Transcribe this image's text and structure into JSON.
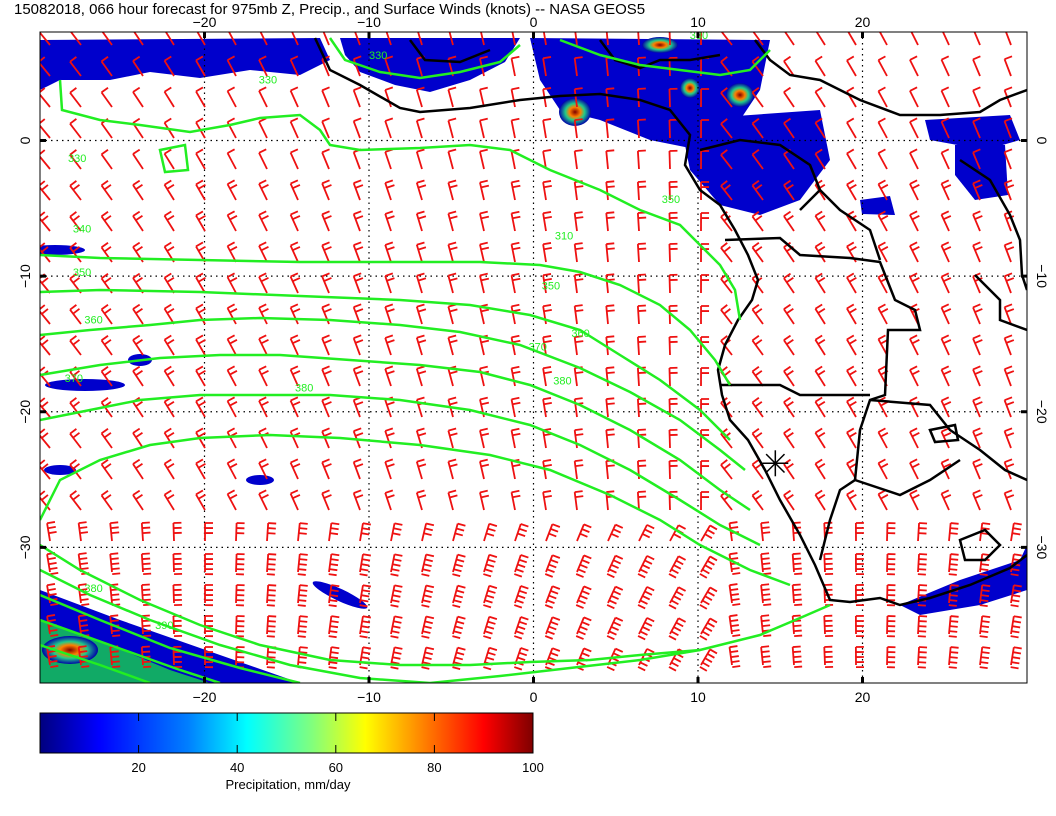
{
  "title": "15082018, 066 hour forecast for 975mb Z, Precip., and Surface Winds (knots) -- NASA GEOS5",
  "map": {
    "lon_range": [
      -30,
      30
    ],
    "lat_range": [
      -40,
      8
    ],
    "lon_ticks": [
      -20,
      -10,
      0,
      10,
      20
    ],
    "lon_tick_labels": [
      "−20",
      "−10",
      "0",
      "10",
      "20"
    ],
    "lat_ticks": [
      0,
      -10,
      -20,
      -30
    ],
    "lat_tick_labels": [
      "0",
      "−10",
      "−20",
      "−30"
    ],
    "grid": "dotted",
    "contour_color": "#22ee22",
    "barb_color": "#ee1111",
    "coast_color": "#000000",
    "contour_labels": [
      {
        "text": "330",
        "lon": -16.7,
        "lat": 4.2
      },
      {
        "text": "330",
        "lon": -28.3,
        "lat": -1.6
      },
      {
        "text": "340",
        "lon": -28.0,
        "lat": -6.8
      },
      {
        "text": "350",
        "lon": -28.0,
        "lat": -10.0
      },
      {
        "text": "360",
        "lon": -27.3,
        "lat": -13.5
      },
      {
        "text": "370",
        "lon": -28.5,
        "lat": -17.8
      },
      {
        "text": "380",
        "lon": -14.5,
        "lat": -18.5
      },
      {
        "text": "310",
        "lon": 1.3,
        "lat": -7.3
      },
      {
        "text": "350",
        "lon": 0.5,
        "lat": -11.0
      },
      {
        "text": "360",
        "lon": 2.3,
        "lat": -14.5
      },
      {
        "text": "370",
        "lon": -0.3,
        "lat": -15.5
      },
      {
        "text": "380",
        "lon": 1.2,
        "lat": -18.0
      },
      {
        "text": "350",
        "lon": 7.8,
        "lat": -4.6
      },
      {
        "text": "380",
        "lon": -27.3,
        "lat": -33.3
      },
      {
        "text": "390",
        "lon": -23.0,
        "lat": -36.0
      },
      {
        "text": "330",
        "lon": -10.0,
        "lat": 6.0
      },
      {
        "text": "330",
        "lon": 9.5,
        "lat": 7.5
      }
    ],
    "marker": {
      "lon": 14.7,
      "lat": -23.8
    }
  },
  "colorbar": {
    "label": "Precipitation, mm/day",
    "range": [
      0,
      100
    ],
    "ticks": [
      20,
      40,
      60,
      80,
      100
    ],
    "tick_labels": [
      "20",
      "40",
      "60",
      "80",
      "100"
    ],
    "colors": [
      "#00007f",
      "#0000ff",
      "#007fff",
      "#00ffff",
      "#7fff7f",
      "#ffff00",
      "#ff7f00",
      "#ff0000",
      "#7f0000"
    ]
  }
}
